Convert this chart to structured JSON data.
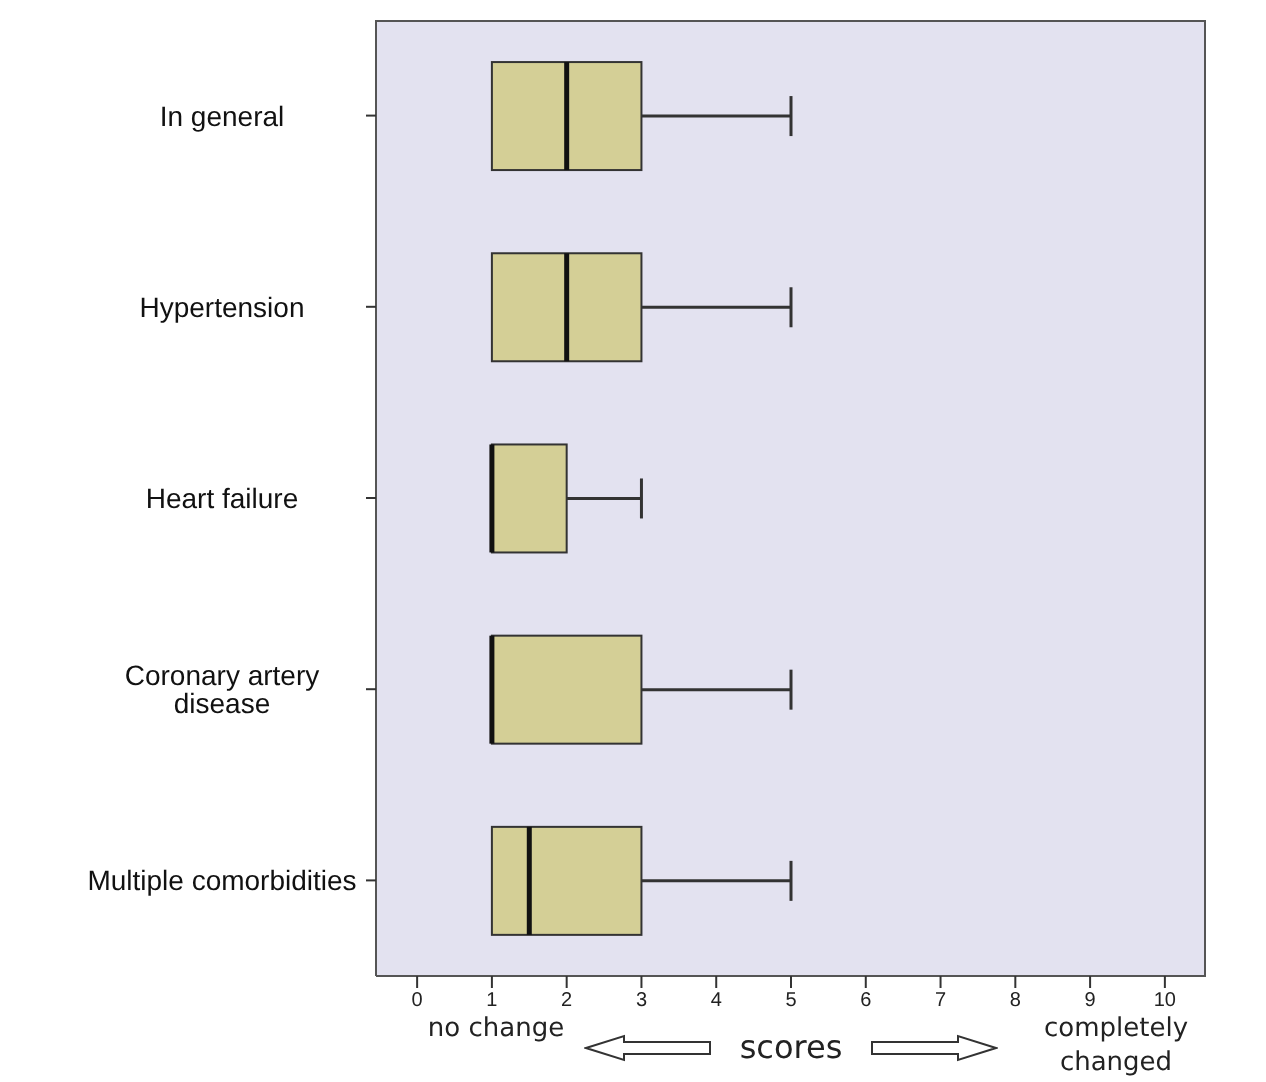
{
  "chart_data": {
    "type": "box",
    "orientation": "horizontal",
    "categories": [
      "In general",
      "Hypertension",
      "Heart failure",
      "Coronary artery disease",
      "Multiple comorbidities"
    ],
    "boxes": [
      {
        "low": 1,
        "q1": 1,
        "median": 2,
        "q3": 3,
        "high": 5
      },
      {
        "low": 1,
        "q1": 1,
        "median": 2,
        "q3": 3,
        "high": 5
      },
      {
        "low": 1,
        "q1": 1,
        "median": 1,
        "q3": 2,
        "high": 3
      },
      {
        "low": 1,
        "q1": 1,
        "median": 1,
        "q3": 3,
        "high": 5
      },
      {
        "low": 1,
        "q1": 1,
        "median": 1.5,
        "q3": 3,
        "high": 5
      }
    ],
    "color": "#d4cf96",
    "xlabel": "scores",
    "xlim": [
      -0.55,
      10.55
    ],
    "xticks": [
      0,
      1,
      2,
      3,
      4,
      5,
      6,
      7,
      8,
      9,
      10
    ],
    "annotations": [
      "no change",
      "completely changed"
    ]
  }
}
